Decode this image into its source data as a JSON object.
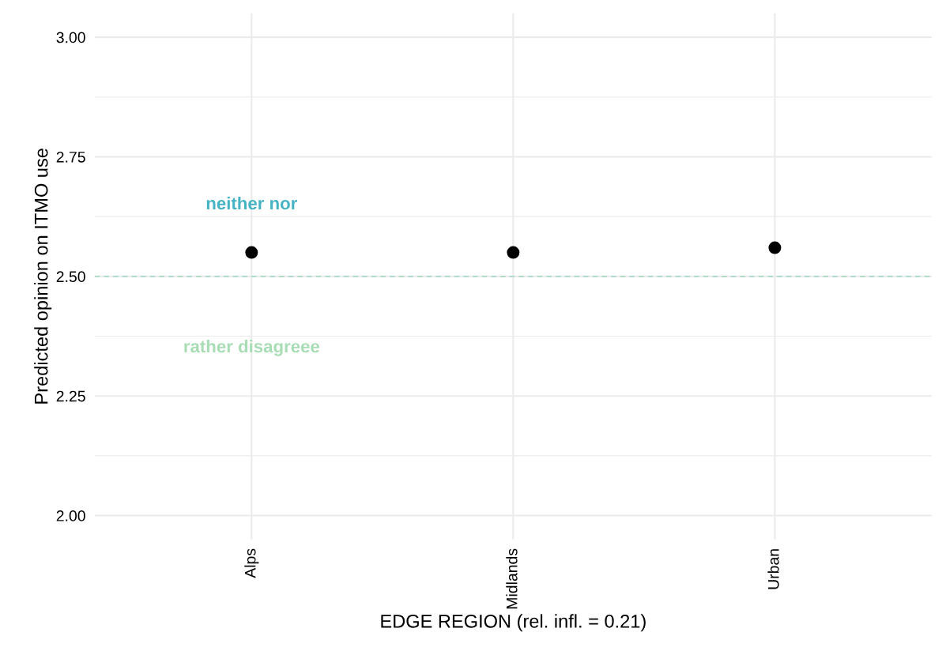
{
  "chart_data": {
    "type": "scatter",
    "xlabel": "EDGE REGION (rel. infl. = 0.21)",
    "ylabel": "Predicted opinion on ITMO use",
    "categories": [
      "Alps",
      "Midlands",
      "Urban"
    ],
    "series": [
      {
        "color": "#000000",
        "values": [
          2.55,
          2.55,
          2.56
        ]
      }
    ],
    "ylim": [
      1.95,
      3.05
    ],
    "yticks": [
      {
        "value": 2.0,
        "label": "2.00"
      },
      {
        "value": 2.25,
        "label": "2.25"
      },
      {
        "value": 2.5,
        "label": "2.50"
      },
      {
        "value": 2.75,
        "label": "2.75"
      },
      {
        "value": 3.0,
        "label": "3.00"
      }
    ],
    "ref_lines": [
      {
        "axis": "y",
        "value": 2.5,
        "color": "#a8dcc4",
        "line_style": "dashed"
      }
    ],
    "annotations": [
      "neither nor",
      "rather disagreee"
    ],
    "grid": true,
    "marker": "circle",
    "legend": false
  }
}
